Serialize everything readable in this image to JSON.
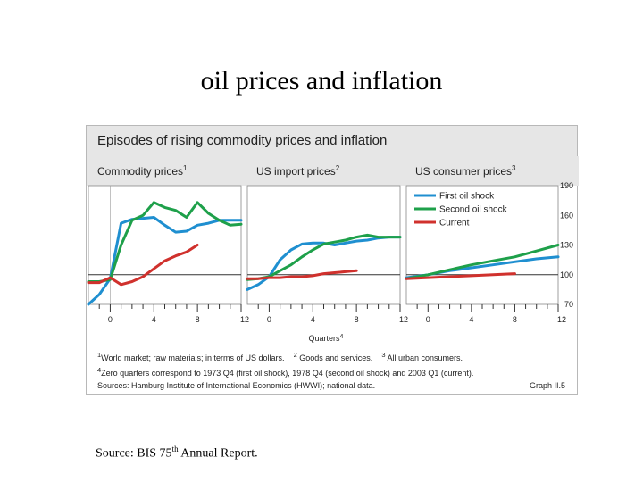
{
  "slide": {
    "title": "oil prices and inflation",
    "source_prefix": "Source: BIS 75",
    "source_sup": "th",
    "source_suffix": " Annual Report."
  },
  "figure": {
    "title": "Episodes of rising commodity prices and inflation",
    "x_axis_title": "Quarters",
    "x_axis_title_sup": "4",
    "colors": {
      "first_oil_shock": "#1f8fd0",
      "second_oil_shock": "#1ea04a",
      "current": "#d0312d",
      "header_bg": "#e6e6e6"
    },
    "notes": {
      "line1_a": "World market; raw materials; in terms of US dollars.",
      "line1_b": "Goods and services.",
      "line1_c": "All urban consumers.",
      "line2": "Zero quarters correspond to 1973 Q4 (first oil shock), 1978 Q4 (second oil shock) and 2003 Q1 (current).",
      "sources": "Sources: Hamburg Institute of International Economics (HWWI); national data.",
      "graph_label": "Graph II.5"
    }
  },
  "chart_data": {
    "type": "line",
    "x_ticks": [
      0,
      4,
      8,
      12
    ],
    "y_ticks": [
      70,
      100,
      130,
      160,
      190
    ],
    "ylim": [
      70,
      190
    ],
    "legend": [
      "First oil shock",
      "Second oil shock",
      "Current"
    ],
    "panels": [
      {
        "title": "Commodity prices",
        "sup": "1",
        "xlim": [
          -2,
          12
        ],
        "series": [
          {
            "name": "First oil shock",
            "x": [
              -2,
              -1,
              0,
              1,
              2,
              3,
              4,
              5,
              6,
              7,
              8,
              9,
              10,
              11,
              12
            ],
            "y": [
              70,
              80,
              96,
              152,
              156,
              157,
              158,
              150,
              143,
              144,
              150,
              152,
              155,
              155,
              155
            ]
          },
          {
            "name": "Second oil shock",
            "x": [
              -2,
              -1,
              0,
              1,
              2,
              3,
              4,
              5,
              6,
              7,
              8,
              9,
              10,
              11,
              12
            ],
            "y": [
              93,
              93,
              95,
              130,
              155,
              160,
              173,
              168,
              165,
              158,
              173,
              162,
              155,
              150,
              151
            ]
          },
          {
            "name": "Current",
            "x": [
              -2,
              -1,
              0,
              1,
              2,
              3,
              4,
              5,
              6,
              7,
              8
            ],
            "y": [
              92,
              92,
              97,
              90,
              93,
              98,
              106,
              114,
              119,
              123,
              130
            ]
          }
        ]
      },
      {
        "title": "US import prices",
        "sup": "2",
        "xlim": [
          -2,
          12
        ],
        "series": [
          {
            "name": "First oil shock",
            "x": [
              -2,
              -1,
              0,
              1,
              2,
              3,
              4,
              5,
              6,
              7,
              8,
              9,
              10,
              11,
              12
            ],
            "y": [
              85,
              90,
              98,
              115,
              125,
              131,
              132,
              132,
              130,
              132,
              134,
              135,
              137,
              138,
              138
            ]
          },
          {
            "name": "Second oil shock",
            "x": [
              -2,
              -1,
              0,
              1,
              2,
              3,
              4,
              5,
              6,
              7,
              8,
              9,
              10,
              11,
              12
            ],
            "y": [
              95,
              96,
              98,
              104,
              110,
              118,
              125,
              131,
              133,
              135,
              138,
              140,
              138,
              138,
              138
            ]
          },
          {
            "name": "Current",
            "x": [
              -2,
              -1,
              0,
              1,
              2,
              3,
              4,
              5,
              6,
              7,
              8
            ],
            "y": [
              96,
              96,
              97,
              97,
              98,
              98,
              99,
              101,
              102,
              103,
              104
            ]
          }
        ]
      },
      {
        "title": "US consumer prices",
        "sup": "3",
        "xlim": [
          -2,
          12
        ],
        "series": [
          {
            "name": "First oil shock",
            "x": [
              -2,
              0,
              2,
              4,
              6,
              8,
              10,
              12
            ],
            "y": [
              97,
              100,
              104,
              107,
              110,
              113,
              116,
              118
            ]
          },
          {
            "name": "Second oil shock",
            "x": [
              -2,
              0,
              2,
              4,
              6,
              8,
              10,
              12
            ],
            "y": [
              96,
              100,
              105,
              110,
              114,
              118,
              124,
              130
            ]
          },
          {
            "name": "Current",
            "x": [
              -2,
              0,
              2,
              4,
              6,
              8
            ],
            "y": [
              96,
              97,
              98,
              99,
              100,
              101
            ]
          }
        ]
      }
    ]
  }
}
